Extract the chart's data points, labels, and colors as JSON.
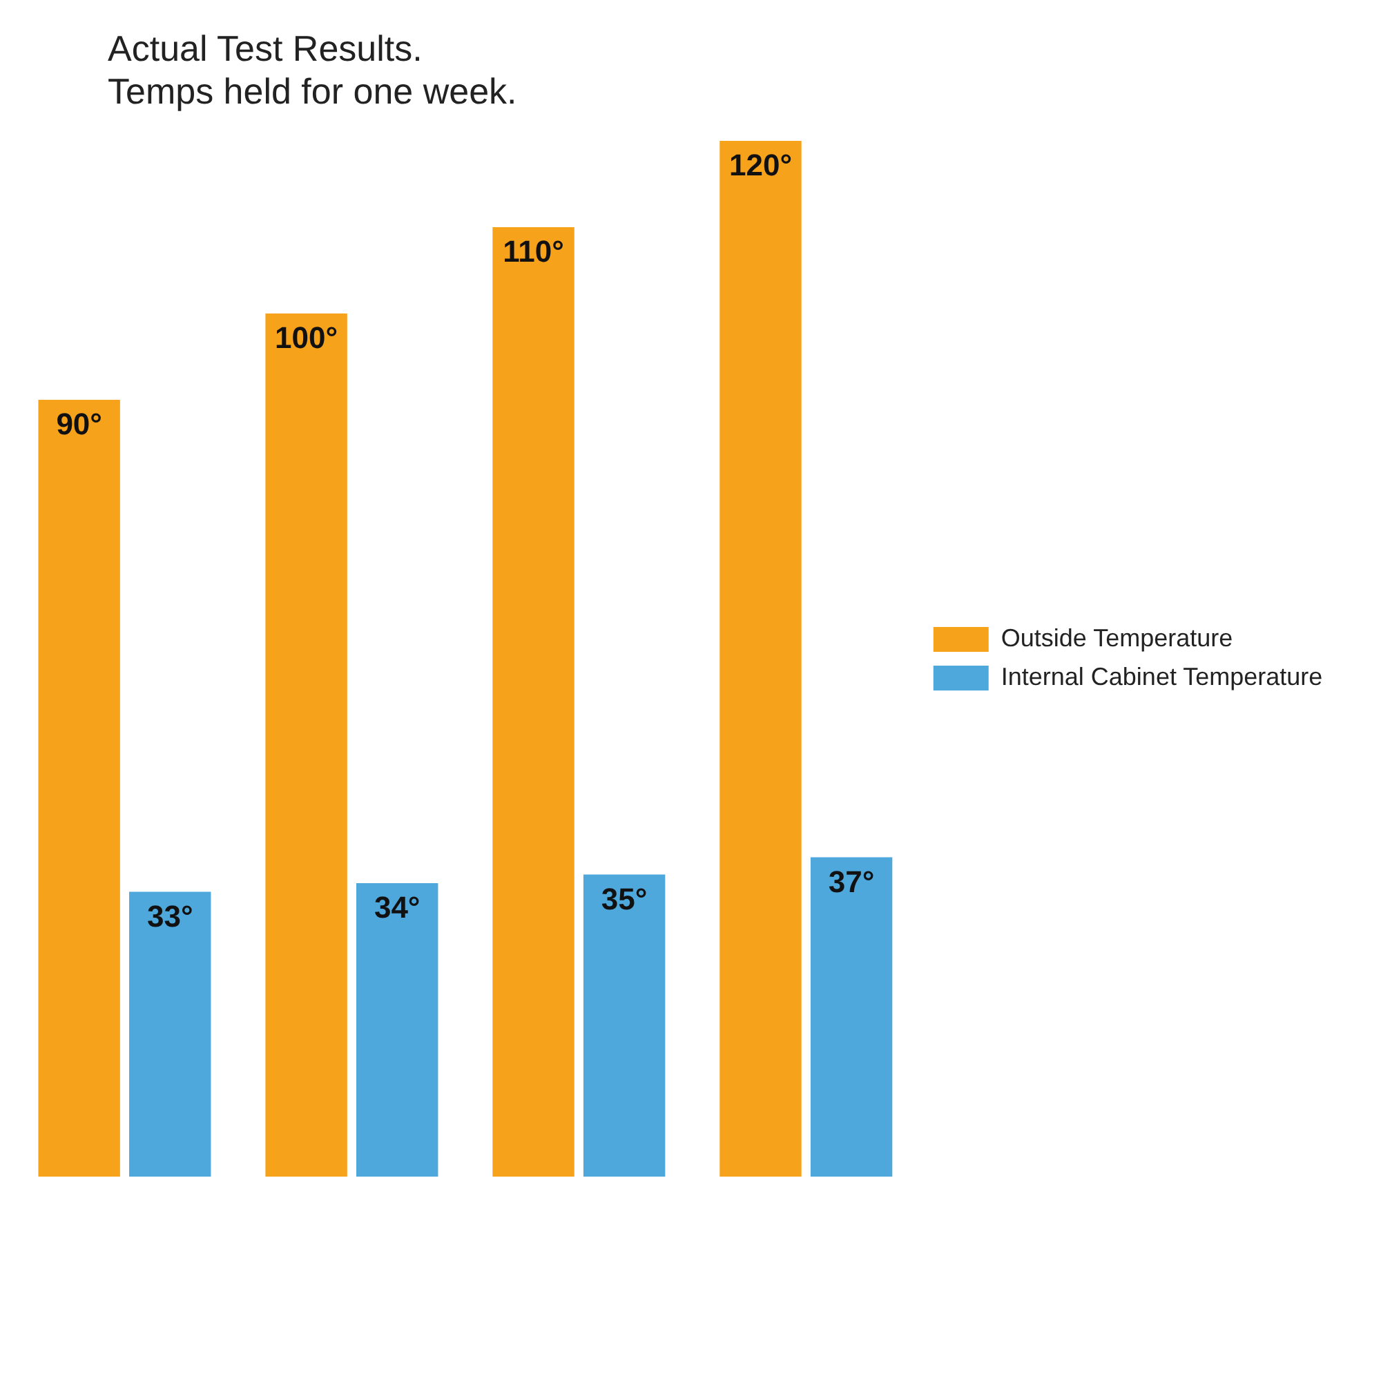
{
  "chart_data": {
    "type": "bar",
    "annotations": [
      "Actual Test Results. Temps held for one week."
    ],
    "categories": [
      null,
      null,
      null,
      null
    ],
    "series": [
      {
        "name": "Outside Temperature",
        "color": "#f7a21b",
        "values": [
          90,
          100,
          110,
          120
        ],
        "value_labels": [
          "90°",
          "100°",
          "110°",
          "120°"
        ]
      },
      {
        "name": "Internal Cabinet Temperature",
        "color": "#4fa8dc",
        "values": [
          33,
          34,
          35,
          37
        ],
        "value_labels": [
          "33°",
          "34°",
          "35°",
          "37°"
        ]
      }
    ],
    "legend": "right",
    "tick_labels": false
  }
}
